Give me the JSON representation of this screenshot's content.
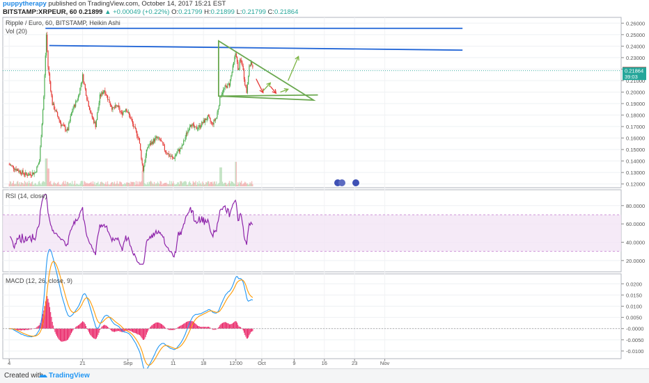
{
  "header": {
    "author": "puppytherapy",
    "published_text": "published on TradingView.com, October 14, 2017 15:21 EST",
    "symbol": "BITSTAMP:XRPEUR, 60",
    "last": "0.21899",
    "change": "▲ +0.00049 (+0.22%)",
    "ohlc": [
      {
        "label": "O:",
        "value": "0.21799"
      },
      {
        "label": "H:",
        "value": "0.21899"
      },
      {
        "label": "L:",
        "value": "0.21799"
      },
      {
        "label": "C:",
        "value": "0.21864"
      }
    ]
  },
  "chart_data": [
    {
      "type": "candlestick",
      "title": "Ripple / Euro, 60, BITSTAMP, Heikin Ashi",
      "volume_label": "Vol (20)",
      "ylim": [
        0.118,
        0.262
      ],
      "y_ticks": [
        "0.26000",
        "0.25000",
        "0.24000",
        "0.23000",
        "0.22000",
        "0.21000",
        "0.20000",
        "0.19000",
        "0.18000",
        "0.17000",
        "0.16000",
        "0.15000",
        "0.14000",
        "0.13000",
        "0.12000"
      ],
      "x_ticks": [
        "4",
        "21",
        "Sep",
        "11",
        "18",
        "12:00",
        "Oct",
        "9",
        "16",
        "23",
        "Nov"
      ],
      "price_labels": [
        {
          "value": 0.21899,
          "text": "0.21899",
          "color": "#ef5350"
        },
        {
          "value": 0.21864,
          "text": "0.21864",
          "color": "#26a69a"
        },
        {
          "value": 0.2135,
          "text": "39:03",
          "color": "#26a69a"
        }
      ],
      "price_path": [
        {
          "day": 1,
          "price": 0.137
        },
        {
          "day": 3,
          "price": 0.132
        },
        {
          "day": 5,
          "price": 0.128
        },
        {
          "day": 7,
          "price": 0.13
        },
        {
          "day": 8,
          "price": 0.14
        },
        {
          "day": 9,
          "price": 0.196
        },
        {
          "day": 9.6,
          "price": 0.25
        },
        {
          "day": 10,
          "price": 0.222
        },
        {
          "day": 11,
          "price": 0.19
        },
        {
          "day": 13,
          "price": 0.172
        },
        {
          "day": 14.5,
          "price": 0.166
        },
        {
          "day": 15.5,
          "price": 0.183
        },
        {
          "day": 17,
          "price": 0.196
        },
        {
          "day": 18,
          "price": 0.214
        },
        {
          "day": 19,
          "price": 0.195
        },
        {
          "day": 20,
          "price": 0.18
        },
        {
          "day": 21,
          "price": 0.171
        },
        {
          "day": 22,
          "price": 0.196
        },
        {
          "day": 23,
          "price": 0.202
        },
        {
          "day": 24,
          "price": 0.193
        },
        {
          "day": 25,
          "price": 0.185
        },
        {
          "day": 26,
          "price": 0.188
        },
        {
          "day": 27,
          "price": 0.181
        },
        {
          "day": 28,
          "price": 0.186
        },
        {
          "day": 29,
          "price": 0.178
        },
        {
          "day": 30,
          "price": 0.168
        },
        {
          "day": 31,
          "price": 0.16
        },
        {
          "day": 32,
          "price": 0.132
        },
        {
          "day": 33,
          "price": 0.152
        },
        {
          "day": 34,
          "price": 0.156
        },
        {
          "day": 35,
          "price": 0.16
        },
        {
          "day": 36,
          "price": 0.158
        },
        {
          "day": 37,
          "price": 0.15
        },
        {
          "day": 38,
          "price": 0.145
        },
        {
          "day": 39,
          "price": 0.142
        },
        {
          "day": 40,
          "price": 0.148
        },
        {
          "day": 41,
          "price": 0.152
        },
        {
          "day": 42,
          "price": 0.163
        },
        {
          "day": 43,
          "price": 0.173
        },
        {
          "day": 44,
          "price": 0.168
        },
        {
          "day": 45,
          "price": 0.17
        },
        {
          "day": 46,
          "price": 0.174
        },
        {
          "day": 47,
          "price": 0.178
        },
        {
          "day": 48,
          "price": 0.172
        },
        {
          "day": 49,
          "price": 0.178
        },
        {
          "day": 50,
          "price": 0.198
        },
        {
          "day": 51,
          "price": 0.204
        },
        {
          "day": 52,
          "price": 0.207
        },
        {
          "day": 53,
          "price": 0.225
        },
        {
          "day": 53.5,
          "price": 0.236
        },
        {
          "day": 54,
          "price": 0.218
        },
        {
          "day": 54.5,
          "price": 0.228
        },
        {
          "day": 55,
          "price": 0.224
        },
        {
          "day": 55.5,
          "price": 0.21
        },
        {
          "day": 56,
          "price": 0.2
        },
        {
          "day": 56.5,
          "price": 0.22
        },
        {
          "day": 57,
          "price": 0.226
        },
        {
          "day": 57.5,
          "price": 0.218
        }
      ],
      "volume_spikes": [
        {
          "day": 9.6,
          "value": 1.0
        },
        {
          "day": 10.1,
          "value": 0.55
        },
        {
          "day": 32,
          "value": 0.45
        },
        {
          "day": 50,
          "value": 0.6
        },
        {
          "day": 53.5,
          "value": 0.85
        }
      ],
      "drawings": {
        "resistance_lines": [
          {
            "start": {
              "day": 9.4,
              "price": 0.2555
            },
            "end": {
              "day": 106,
              "price": 0.2555
            }
          },
          {
            "start": {
              "day": 10.3,
              "price": 0.2405
            },
            "end": {
              "day": 106,
              "price": 0.2365
            }
          }
        ],
        "triangle": {
          "top": {
            "day": 49.5,
            "price": 0.2445
          },
          "bottom": {
            "day": 49.5,
            "price": 0.1965
          },
          "right": {
            "day": 71.5,
            "price": 0.193
          },
          "support_end": {
            "day": 72.5,
            "price": 0.1975
          }
        },
        "arrows": [
          {
            "from": {
              "day": 58.2,
              "price": 0.2115
            },
            "to": {
              "day": 59.8,
              "price": 0.1995
            },
            "color": "#e53935"
          },
          {
            "from": {
              "day": 61.5,
              "price": 0.205
            },
            "to": {
              "day": 62.8,
              "price": 0.199
            },
            "color": "#e53935"
          },
          {
            "from": {
              "day": 59.8,
              "price": 0.201
            },
            "to": {
              "day": 61.5,
              "price": 0.208
            },
            "color": "#7cb342"
          },
          {
            "from": {
              "day": 63.8,
              "price": 0.2
            },
            "to": {
              "day": 65.6,
              "price": 0.2025
            },
            "color": "#7cb342"
          },
          {
            "from": {
              "day": 65.6,
              "price": 0.21
            },
            "to": {
              "day": 68.0,
              "price": 0.231
            },
            "color": "#7cb342"
          }
        ]
      }
    },
    {
      "type": "line",
      "title": "RSI (14, close)",
      "ylim": [
        10,
        95
      ],
      "y_ticks": [
        "80.0000",
        "60.0000",
        "40.0000",
        "20.0000"
      ],
      "band": [
        30,
        70
      ],
      "color": "#8e24aa"
    },
    {
      "type": "line",
      "title": "MACD (12, 26, close, 9)",
      "ylim": [
        -0.0125,
        0.0235
      ],
      "y_ticks": [
        "0.0200",
        "0.0150",
        "0.0100",
        "0.0050",
        "-0.0000",
        "-0.0050",
        "-0.0100"
      ],
      "series": [
        {
          "color": "#2196f3"
        },
        {
          "color": "#ff9800"
        },
        {
          "color": "#e91e63"
        }
      ]
    }
  ],
  "footer": {
    "created_with": "Created with",
    "brand": "TradingView"
  }
}
